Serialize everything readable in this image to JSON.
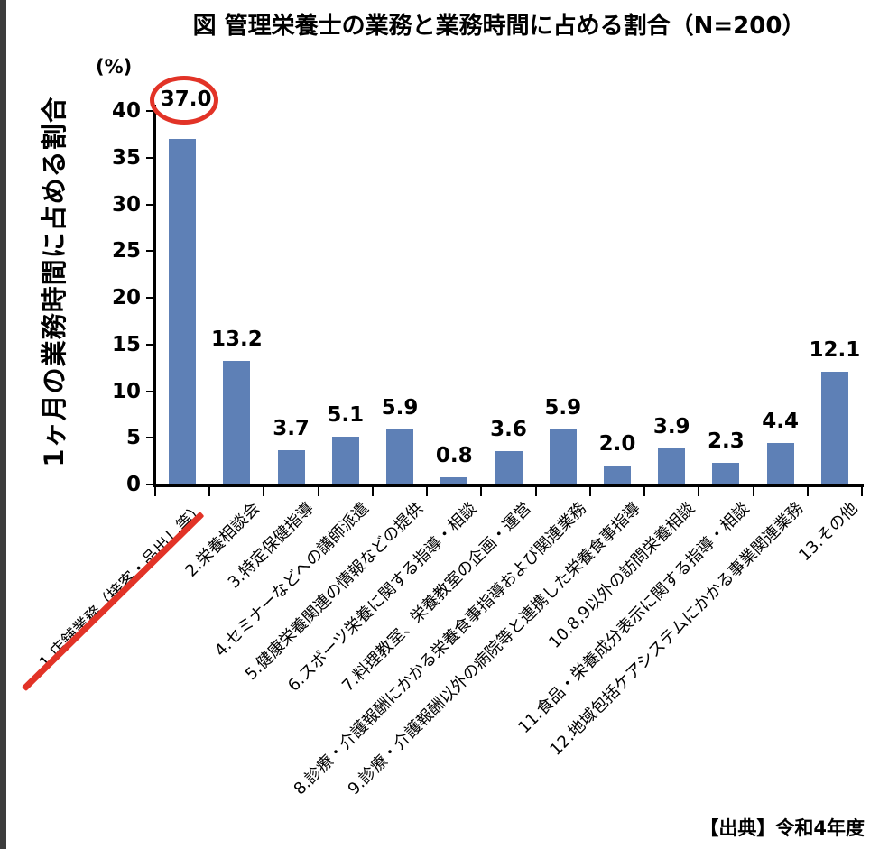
{
  "page": {
    "title": "図 管理栄養士の業務と業務時間に占める割合（N=200）",
    "source_note": "【出典】令和4年度"
  },
  "chart_data": {
    "type": "bar",
    "title": "図 管理栄養士の業務と業務時間に占める割合（N=200）",
    "ylabel": "1ヶ月の業務時間に占める割合",
    "y_unit_label": "(%)",
    "xlabel": "",
    "ylim": [
      0,
      40
    ],
    "yticks": [
      0,
      5,
      10,
      15,
      20,
      25,
      30,
      35,
      40
    ],
    "grid": false,
    "bar_color": "#5e80b6",
    "categories": [
      "1.店舗業務（接客・品出し等）",
      "2.栄養相談会",
      "3.特定保健指導",
      "4.セミナーなどへの講師派遣",
      "5.健康栄養関連の情報などの提供",
      "6.スポーツ栄養に関する指導・相談",
      "7.料理教室、栄養教室の企画・運営",
      "8.診療・介護報酬にかかる栄養食事指導および関連業務",
      "9.診療・介護報酬以外の病院等と連携した栄養食事指導",
      "10.8,9以外の訪問栄養相談",
      "11.食品・栄養成分表示に関する指導・相談",
      "12.地域包括ケアシステムにかかる事業関連業務",
      "13.その他"
    ],
    "values": [
      37.0,
      13.2,
      3.7,
      5.1,
      5.9,
      0.8,
      3.6,
      5.9,
      2.0,
      3.9,
      2.3,
      4.4,
      12.1
    ],
    "value_labels": [
      "37.0",
      "13.2",
      "3.7",
      "5.1",
      "5.9",
      "0.8",
      "3.6",
      "5.9",
      "2.0",
      "3.9",
      "2.3",
      "4.4",
      "12.1"
    ],
    "annotations": {
      "circled_value_index": 0,
      "underlined_category_index": 0,
      "annotation_color": "#e23327"
    },
    "source_note": "【出典】令和4年度"
  }
}
